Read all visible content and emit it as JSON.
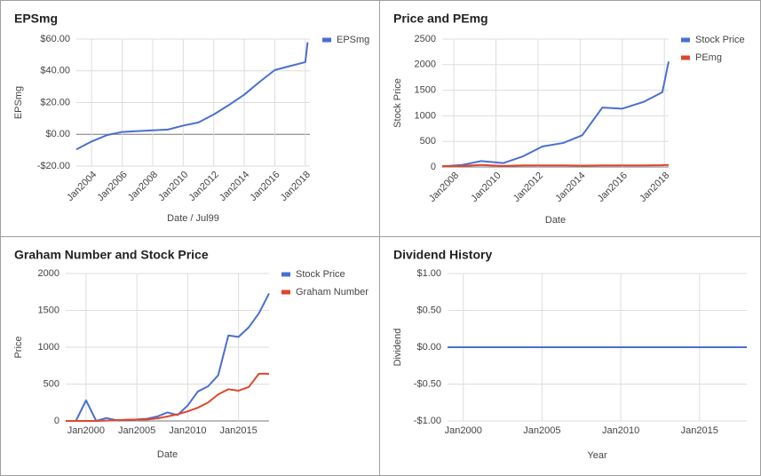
{
  "chart_data": [
    {
      "type": "line",
      "title": "EPSmg",
      "x_label": "Date / Jul99",
      "y_label": "EPSmg",
      "x": [
        2003,
        2004,
        2005,
        2006,
        2007,
        2008,
        2009,
        2010,
        2011,
        2012,
        2013,
        2014,
        2015,
        2016,
        2017,
        2018,
        2018.15
      ],
      "xlim": [
        2003,
        2018.3
      ],
      "xticks": [
        {
          "value": 2004,
          "label": "Jan2004"
        },
        {
          "value": 2006,
          "label": "Jan2006"
        },
        {
          "value": 2008,
          "label": "Jan2008"
        },
        {
          "value": 2010,
          "label": "Jan2010"
        },
        {
          "value": 2012,
          "label": "Jan2012"
        },
        {
          "value": 2014,
          "label": "Jan2014"
        },
        {
          "value": 2016,
          "label": "Jan2016"
        },
        {
          "value": 2018,
          "label": "Jan2018"
        }
      ],
      "ylim": [
        -20,
        60
      ],
      "yticks": [
        {
          "value": -20,
          "label": "-$20.00"
        },
        {
          "value": 0,
          "label": "$0.00"
        },
        {
          "value": 20,
          "label": "$20.00"
        },
        {
          "value": 40,
          "label": "$40.00"
        },
        {
          "value": 60,
          "label": "$60.00"
        }
      ],
      "grid": true,
      "legend": "right",
      "series": [
        {
          "name": "EPSmg",
          "color": "#4a6fd1",
          "values": [
            -9.5,
            -4.5,
            -0.5,
            1.5,
            2,
            2.5,
            3,
            5.5,
            7.5,
            12.5,
            18.5,
            25,
            33,
            40.5,
            43,
            45.5,
            58
          ]
        }
      ]
    },
    {
      "type": "line",
      "title": "Price and PEmg",
      "x_label": "Date",
      "y_label": "Stock Price",
      "x": [
        2007.45,
        2008.4,
        2009.3,
        2010.35,
        2011.3,
        2012.2,
        2013.2,
        2014.1,
        2015.05,
        2016,
        2017,
        2017.9,
        2018.2
      ],
      "xlim": [
        2007.45,
        2018.2
      ],
      "xticks": [
        {
          "value": 2008,
          "label": "Jan2008"
        },
        {
          "value": 2010,
          "label": "Jan2010"
        },
        {
          "value": 2012,
          "label": "Jan2012"
        },
        {
          "value": 2014,
          "label": "Jan2014"
        },
        {
          "value": 2016,
          "label": "Jan2016"
        },
        {
          "value": 2018,
          "label": "Jan2018"
        }
      ],
      "ylim": [
        0,
        2500
      ],
      "yticks": [
        0,
        500,
        1000,
        1500,
        2000,
        2500
      ],
      "grid": true,
      "legend": "right",
      "series": [
        {
          "name": "Stock Price",
          "color": "#4a6fd1",
          "values": [
            10,
            40,
            115,
            75,
            210,
            400,
            470,
            620,
            1160,
            1140,
            1270,
            1460,
            2060
          ]
        },
        {
          "name": "PEmg",
          "color": "#e0462b",
          "values": [
            15,
            20,
            40,
            20,
            30,
            30,
            30,
            25,
            30,
            30,
            30,
            35,
            40
          ]
        }
      ]
    },
    {
      "type": "line",
      "title": "Graham Number and Stock Price",
      "x_label": "Date",
      "y_label": "Price",
      "x": [
        1998,
        1999,
        2000,
        2001,
        2002,
        2003,
        2004,
        2005,
        2006,
        2007,
        2008,
        2009,
        2010,
        2011,
        2012,
        2013,
        2014,
        2015,
        2016,
        2017,
        2018
      ],
      "xlim": [
        1998,
        2018
      ],
      "xticks": [
        {
          "value": 2000,
          "label": "Jan2000"
        },
        {
          "value": 2005,
          "label": "Jan2005"
        },
        {
          "value": 2010,
          "label": "Jan2010"
        },
        {
          "value": 2015,
          "label": "Jan2015"
        }
      ],
      "ylim": [
        0,
        2000
      ],
      "yticks": [
        0,
        500,
        1000,
        1500,
        2000
      ],
      "grid": true,
      "legend": "right",
      "series": [
        {
          "name": "Stock Price",
          "color": "#4a6fd1",
          "values": [
            0,
            0,
            280,
            0,
            40,
            10,
            15,
            20,
            30,
            60,
            115,
            80,
            210,
            400,
            470,
            620,
            1160,
            1140,
            1270,
            1460,
            1730
          ]
        },
        {
          "name": "Graham Number",
          "color": "#e0462b",
          "values": [
            0,
            0,
            0,
            0,
            5,
            10,
            15,
            20,
            20,
            35,
            60,
            90,
            130,
            180,
            250,
            360,
            430,
            410,
            460,
            640,
            640
          ]
        }
      ]
    },
    {
      "type": "line",
      "title": "Dividend History",
      "x_label": "Year",
      "y_label": "Dividend",
      "x": [
        1999,
        2000,
        2001,
        2002,
        2003,
        2004,
        2005,
        2006,
        2007,
        2008,
        2009,
        2010,
        2011,
        2012,
        2013,
        2014,
        2015,
        2016,
        2017,
        2018
      ],
      "xlim": [
        1999,
        2018
      ],
      "xticks": [
        {
          "value": 2000,
          "label": "Jan2000"
        },
        {
          "value": 2005,
          "label": "Jan2005"
        },
        {
          "value": 2010,
          "label": "Jan2010"
        },
        {
          "value": 2015,
          "label": "Jan2015"
        }
      ],
      "ylim": [
        -1,
        1
      ],
      "yticks": [
        {
          "value": -1,
          "label": "-$1.00"
        },
        {
          "value": -0.5,
          "label": "-$0.50"
        },
        {
          "value": 0,
          "label": "$0.00"
        },
        {
          "value": 0.5,
          "label": "$0.50"
        },
        {
          "value": 1,
          "label": "$1.00"
        }
      ],
      "grid": true,
      "series": [
        {
          "color": "#4a6fd1",
          "values": [
            0,
            0,
            0,
            0,
            0,
            0,
            0,
            0,
            0,
            0,
            0,
            0,
            0,
            0,
            0,
            0,
            0,
            0,
            0,
            0
          ]
        }
      ]
    }
  ]
}
